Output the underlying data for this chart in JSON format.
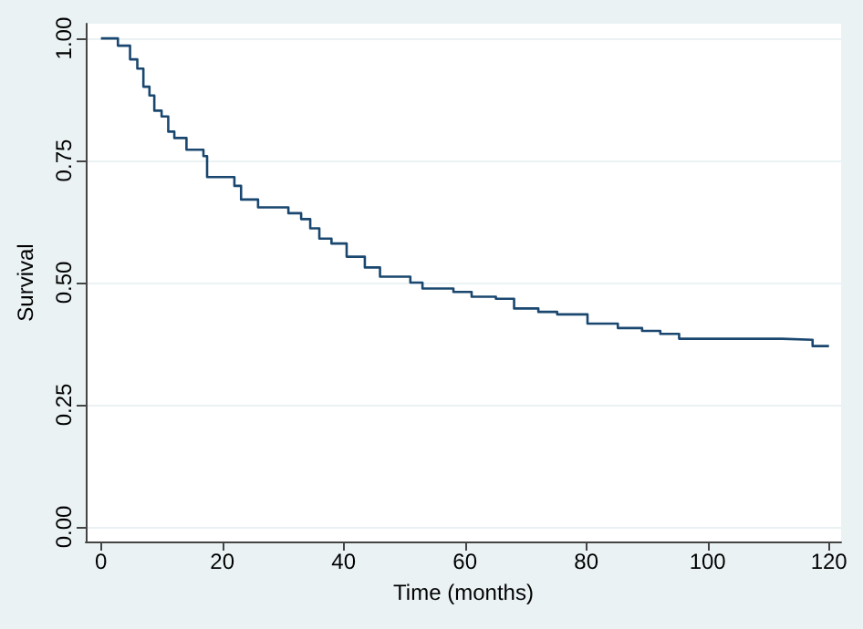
{
  "chart_data": {
    "type": "step",
    "xlabel": "Time (months)",
    "ylabel": "Survival",
    "x": [
      0,
      2.8,
      4.8,
      6.0,
      7.0,
      8.0,
      8.8,
      10.0,
      11.1,
      12.1,
      14.1,
      16.9,
      17.5,
      22.0,
      23.1,
      25.9,
      30.9,
      33.0,
      34.5,
      36.0,
      38.0,
      40.5,
      43.5,
      46.0,
      51.0,
      53.0,
      58.1,
      61.1,
      65.1,
      68.1,
      72.1,
      75.2,
      80.2,
      85.2,
      89.2,
      92.2,
      95.3,
      112.3,
      117.3,
      120
    ],
    "series": [
      {
        "color": "#1a476f",
        "values": [
          1.0,
          0.985,
          0.957,
          0.938,
          0.901,
          0.883,
          0.852,
          0.84,
          0.809,
          0.796,
          0.772,
          0.759,
          0.716,
          0.698,
          0.67,
          0.654,
          0.642,
          0.63,
          0.611,
          0.59,
          0.58,
          0.553,
          0.531,
          0.512,
          0.5,
          0.488,
          0.481,
          0.471,
          0.467,
          0.447,
          0.44,
          0.435,
          0.416,
          0.407,
          0.401,
          0.395,
          0.385,
          0.383,
          0.37,
          0.37
        ]
      }
    ],
    "xlim": [
      -2.5,
      122
    ],
    "ylim": [
      -0.03,
      1.03
    ],
    "xticks": [
      0,
      20,
      40,
      60,
      80,
      100,
      120
    ],
    "yticks": [
      {
        "value": 0,
        "label": "0.00"
      },
      {
        "value": 0.25,
        "label": "0.25"
      },
      {
        "value": 0.5,
        "label": "0.50"
      },
      {
        "value": 0.75,
        "label": "0.75"
      },
      {
        "value": 1,
        "label": "1.00"
      }
    ],
    "grid": "y",
    "marker": "none",
    "line_style": "solid"
  }
}
